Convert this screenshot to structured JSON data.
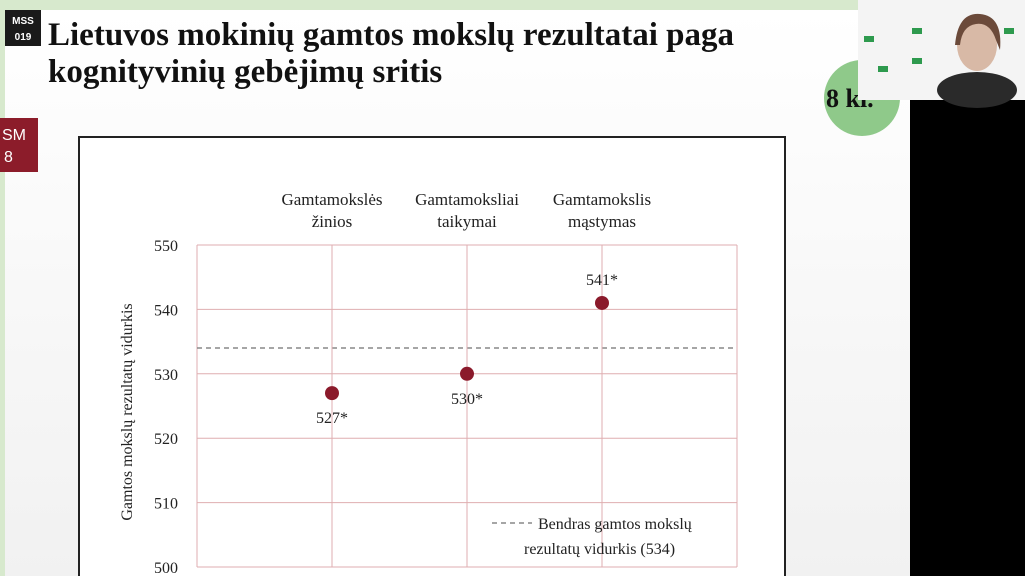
{
  "slide": {
    "logo": [
      "MSS",
      "019"
    ],
    "title": [
      "Lietuvos mokinių gamtos mokslų rezultatai paga",
      "kognityvinių gebėjimų sritis"
    ],
    "badge": [
      "SM",
      "8"
    ],
    "grade": "8 kl."
  },
  "chart_data": {
    "type": "scatter",
    "categories": [
      [
        "Gamtamokslės",
        "žinios"
      ],
      [
        "Gamtamoksliai",
        "taikymai"
      ],
      [
        "Gamtamokslis",
        "mąstymas"
      ]
    ],
    "values": [
      527,
      530,
      541
    ],
    "value_labels": [
      "527*",
      "530*",
      "541*"
    ],
    "color": "#8b1a2b",
    "ylabel": "Gamtos mokslų rezultatų vidurkis",
    "ylim": [
      500,
      550
    ],
    "yticks": [
      500,
      510,
      520,
      530,
      540,
      550
    ],
    "grid": true,
    "reference": {
      "value": 534,
      "label": [
        "Bendras gamtos mokslų",
        "rezultatų vidurkis (534)"
      ]
    }
  }
}
